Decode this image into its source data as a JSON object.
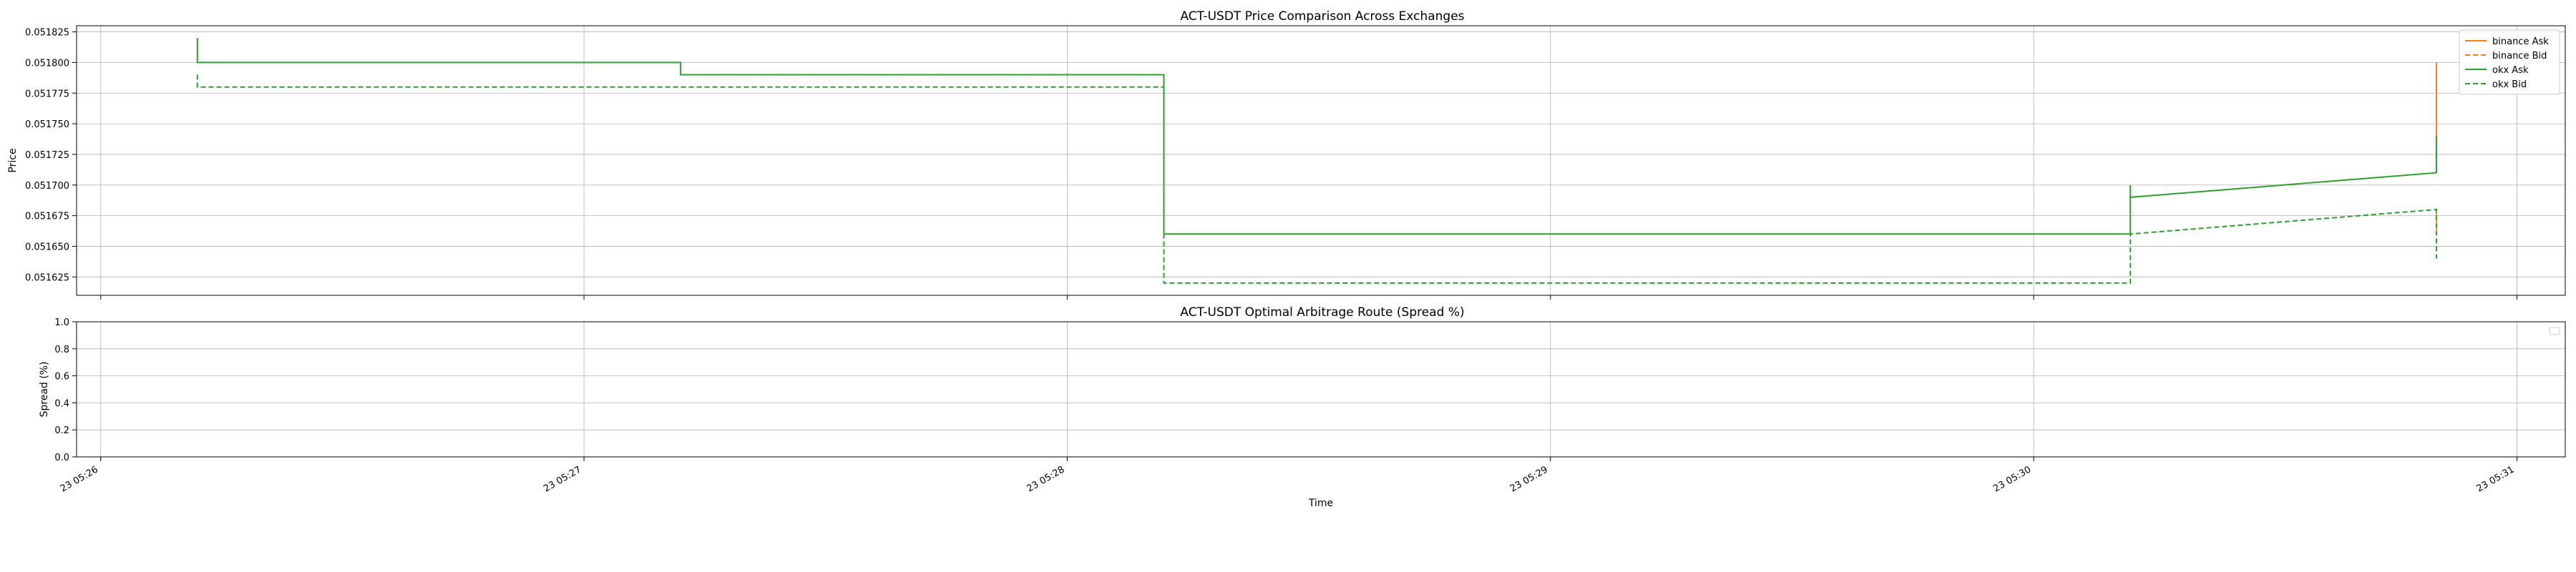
{
  "chart_data": [
    {
      "type": "line",
      "title": "ACT-USDT Price Comparison Across Exchanges",
      "xlabel": "",
      "ylabel": "Price",
      "xlim": [
        "23 05:25:57",
        "23 05:31:06"
      ],
      "ylim": [
        0.05161,
        0.05183
      ],
      "yticks": [
        "0.051625",
        "0.051650",
        "0.051675",
        "0.051700",
        "0.051725",
        "0.051750",
        "0.051775",
        "0.051800",
        "0.051825"
      ],
      "xticks": [
        "23 05:26",
        "23 05:27",
        "23 05:28",
        "23 05:29",
        "23 05:30",
        "23 05:31"
      ],
      "grid": true,
      "legend": "top-right",
      "series": [
        {
          "name": "binance Ask",
          "color": "#ff7f0e",
          "style": "solid",
          "points": [
            [
              "23 05:30:50",
              0.05171
            ],
            [
              "23 05:30:50",
              0.0518
            ]
          ]
        },
        {
          "name": "binance Bid",
          "color": "#ff7f0e",
          "style": "dashed",
          "points": [
            [
              "23 05:30:50",
              0.05168
            ],
            [
              "23 05:30:50",
              0.05166
            ]
          ]
        },
        {
          "name": "okx Ask",
          "color": "#2ca02c",
          "style": "solid",
          "points": [
            [
              "23 05:26:12",
              0.05182
            ],
            [
              "23 05:26:12",
              0.0518
            ],
            [
              "23 05:27:12",
              0.0518
            ],
            [
              "23 05:27:12",
              0.05179
            ],
            [
              "23 05:28:12",
              0.05179
            ],
            [
              "23 05:28:12",
              0.05166
            ],
            [
              "23 05:30:12",
              0.05166
            ],
            [
              "23 05:30:12",
              0.0517
            ],
            [
              "23 05:30:12",
              0.05169
            ],
            [
              "23 05:30:50",
              0.05171
            ],
            [
              "23 05:30:50",
              0.05174
            ]
          ]
        },
        {
          "name": "okx Bid",
          "color": "#2ca02c",
          "style": "dashed",
          "points": [
            [
              "23 05:26:12",
              0.05179
            ],
            [
              "23 05:26:12",
              0.05178
            ],
            [
              "23 05:28:12",
              0.05178
            ],
            [
              "23 05:28:12",
              0.05162
            ],
            [
              "23 05:30:12",
              0.05162
            ],
            [
              "23 05:30:12",
              0.05166
            ],
            [
              "23 05:30:50",
              0.05168
            ],
            [
              "23 05:30:50",
              0.05164
            ]
          ]
        }
      ]
    },
    {
      "type": "line",
      "title": "ACT-USDT Optimal Arbitrage Route (Spread %)",
      "xlabel": "Time",
      "ylabel": "Spread (%)",
      "xlim": [
        "23 05:25:57",
        "23 05:31:06"
      ],
      "ylim": [
        0.0,
        1.0
      ],
      "yticks": [
        "0.0",
        "0.2",
        "0.4",
        "0.6",
        "0.8",
        "1.0"
      ],
      "xticks": [
        "23 05:26",
        "23 05:27",
        "23 05:28",
        "23 05:29",
        "23 05:30",
        "23 05:31"
      ],
      "grid": true,
      "legend": "top-right",
      "series": []
    }
  ]
}
